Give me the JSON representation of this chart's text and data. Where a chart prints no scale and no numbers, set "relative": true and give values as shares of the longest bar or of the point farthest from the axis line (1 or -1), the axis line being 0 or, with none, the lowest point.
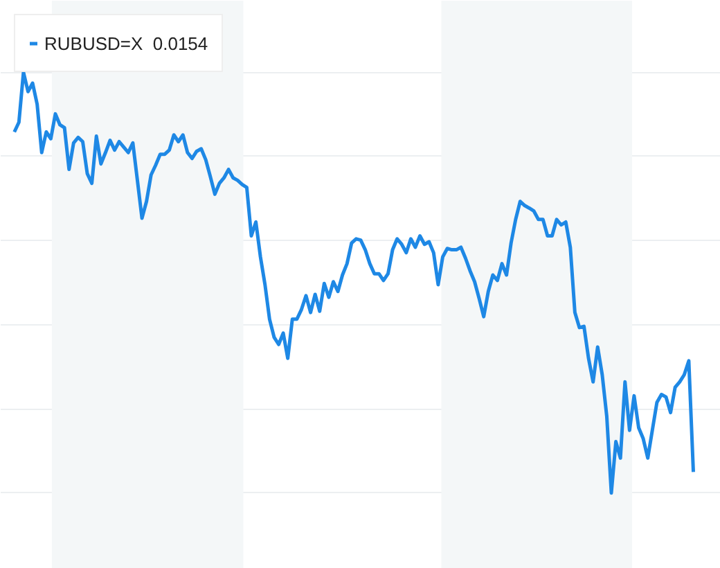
{
  "chart_data": {
    "type": "line",
    "relative": true,
    "grid": "y",
    "legend": "top left",
    "categories": [
      null,
      null,
      null,
      null,
      null,
      null,
      null,
      null,
      null,
      null,
      null,
      null,
      null,
      null,
      null,
      null,
      null,
      null,
      null,
      null,
      null,
      null,
      null,
      null,
      null,
      null,
      null,
      null,
      null,
      null,
      null,
      null,
      null,
      null,
      null,
      null,
      null,
      null,
      null,
      null,
      null,
      null,
      null,
      null,
      null,
      null,
      null,
      null,
      null,
      null,
      null,
      null,
      null,
      null,
      null,
      null,
      null,
      null,
      null,
      null,
      null,
      null,
      null,
      null,
      null,
      null,
      null,
      null,
      null,
      null,
      null,
      null,
      null,
      null,
      null,
      null,
      null,
      null,
      null,
      null,
      null,
      null,
      null,
      null,
      null,
      null,
      null,
      null,
      null,
      null,
      null,
      null,
      null,
      null,
      null,
      null,
      null,
      null,
      null,
      null,
      null,
      null,
      null,
      null,
      null,
      null,
      null,
      null,
      null,
      null,
      null,
      null,
      null,
      null,
      null,
      null,
      null,
      null,
      null,
      null,
      null,
      null,
      null,
      null,
      null,
      null,
      null,
      null,
      null,
      null,
      null,
      null,
      null,
      null,
      null,
      null,
      null,
      null,
      null,
      null,
      null,
      null,
      null,
      null,
      null,
      null,
      null,
      null,
      null,
      null
    ],
    "series": [
      {
        "name": "RUBUSD=X  0.0154",
        "color": "#1e88e5",
        "values": [
          0.858,
          0.881,
          1,
          0.954,
          0.974,
          0.924,
          0.809,
          0.858,
          0.842,
          0.901,
          0.875,
          0.868,
          0.769,
          0.832,
          0.845,
          0.835,
          0.759,
          0.736,
          0.848,
          0.782,
          0.809,
          0.838,
          0.815,
          0.835,
          0.822,
          0.809,
          0.832,
          0.743,
          0.653,
          0.693,
          0.756,
          0.779,
          0.805,
          0.805,
          0.815,
          0.851,
          0.835,
          0.851,
          0.809,
          0.795,
          0.812,
          0.818,
          0.792,
          0.752,
          0.71,
          0.736,
          0.749,
          0.769,
          0.749,
          0.743,
          0.733,
          0.726,
          0.611,
          0.644,
          0.561,
          0.495,
          0.413,
          0.37,
          0.353,
          0.38,
          0.32,
          0.413,
          0.413,
          0.436,
          0.469,
          0.429,
          0.472,
          0.432,
          0.498,
          0.465,
          0.502,
          0.479,
          0.518,
          0.545,
          0.594,
          0.604,
          0.601,
          0.578,
          0.545,
          0.521,
          0.521,
          0.505,
          0.521,
          0.578,
          0.604,
          0.591,
          0.571,
          0.604,
          0.584,
          0.611,
          0.591,
          0.597,
          0.571,
          0.495,
          0.561,
          0.581,
          0.578,
          0.578,
          0.584,
          0.558,
          0.528,
          0.502,
          0.462,
          0.419,
          0.479,
          0.518,
          0.505,
          0.545,
          0.518,
          0.594,
          0.65,
          0.693,
          0.683,
          0.677,
          0.67,
          0.65,
          0.65,
          0.611,
          0.611,
          0.65,
          0.637,
          0.644,
          0.584,
          0.429,
          0.393,
          0.396,
          0.32,
          0.264,
          0.347,
          0.281,
          0.182,
          0,
          0.122,
          0.083,
          0.264,
          0.149,
          0.231,
          0.155,
          0.129,
          0.083,
          0.149,
          0.215,
          0.234,
          0.228,
          0.191,
          0.251,
          0.264,
          0.281,
          0.314,
          0.05
        ]
      }
    ]
  }
}
